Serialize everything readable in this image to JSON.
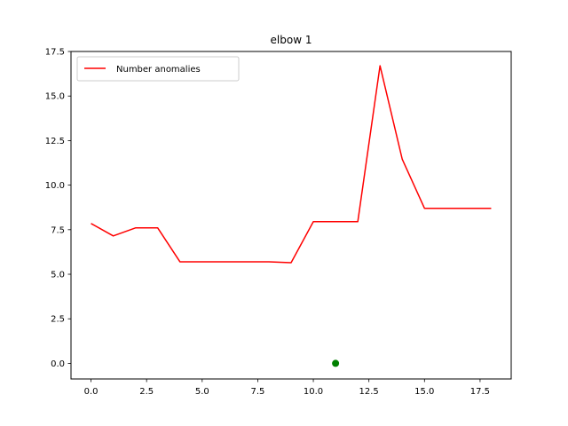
{
  "chart_data": {
    "type": "line",
    "title": "elbow 1",
    "xlabel": "",
    "ylabel": "",
    "xlim": [
      -0.9,
      18.9
    ],
    "ylim": [
      -0.875,
      17.5
    ],
    "x_ticks": [
      0.0,
      2.5,
      5.0,
      7.5,
      10.0,
      12.5,
      15.0,
      17.5
    ],
    "x_tick_labels": [
      "0.0",
      "2.5",
      "5.0",
      "7.5",
      "10.0",
      "12.5",
      "15.0",
      "17.5"
    ],
    "y_ticks": [
      0.0,
      2.5,
      5.0,
      7.5,
      10.0,
      12.5,
      15.0,
      17.5
    ],
    "y_tick_labels": [
      "0.0",
      "2.5",
      "5.0",
      "7.5",
      "10.0",
      "12.5",
      "15.0",
      "17.5"
    ],
    "grid": false,
    "legend_position": "top-left",
    "series": [
      {
        "name": "Number anomalies",
        "color": "#ff0000",
        "x": [
          0,
          1,
          2,
          3,
          4,
          5,
          6,
          7,
          8,
          9,
          10,
          11,
          12,
          13,
          14,
          15,
          16,
          17,
          18
        ],
        "y": [
          7.85,
          7.15,
          7.6,
          7.6,
          5.7,
          5.7,
          5.7,
          5.7,
          5.7,
          5.65,
          7.95,
          7.95,
          7.95,
          16.7,
          11.45,
          8.7,
          8.7,
          8.7,
          8.7
        ]
      }
    ],
    "points": [
      {
        "x": 11,
        "y": 0.0,
        "color": "#008000"
      }
    ]
  }
}
